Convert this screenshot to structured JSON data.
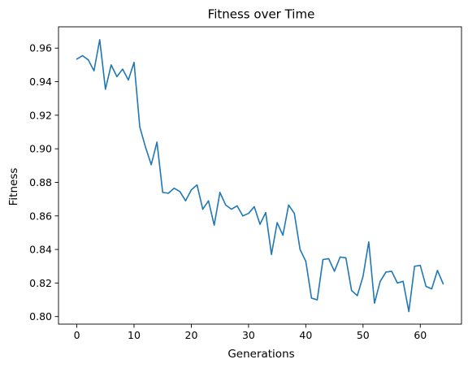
{
  "chart_data": {
    "type": "line",
    "title": "Fitness over Time",
    "xlabel": "Generations",
    "ylabel": "Fitness",
    "xlim": [
      -3.2,
      67.2
    ],
    "ylim": [
      0.7955,
      0.9727
    ],
    "xticks": [
      0,
      10,
      20,
      30,
      40,
      50,
      60
    ],
    "yticks": [
      0.8,
      0.82,
      0.84,
      0.86,
      0.88,
      0.9,
      0.92,
      0.94,
      0.96
    ],
    "ytick_labels": [
      "0.80",
      "0.82",
      "0.84",
      "0.86",
      "0.88",
      "0.90",
      "0.92",
      "0.94",
      "0.96"
    ],
    "grid": false,
    "line_color": "#1f77b4",
    "series": [
      {
        "x": [
          0,
          1,
          2,
          3,
          4,
          5,
          6,
          7,
          8,
          9,
          10,
          11,
          12,
          13,
          14,
          15,
          16,
          17,
          18,
          19,
          20,
          21,
          22,
          23,
          24,
          25,
          26,
          27,
          28,
          29,
          30,
          31,
          32,
          33,
          34,
          35,
          36,
          37,
          38,
          39,
          40,
          41,
          42,
          43,
          44,
          45,
          46,
          47,
          48,
          49,
          50,
          51,
          52,
          53,
          54,
          55,
          56,
          57,
          58,
          59,
          60,
          61,
          62,
          63,
          64
        ],
        "values": [
          0.9535,
          0.9555,
          0.953,
          0.9465,
          0.965,
          0.9355,
          0.95,
          0.943,
          0.9475,
          0.941,
          0.9515,
          0.913,
          0.901,
          0.8905,
          0.904,
          0.874,
          0.8735,
          0.8765,
          0.8745,
          0.869,
          0.8755,
          0.8785,
          0.864,
          0.869,
          0.8545,
          0.874,
          0.8665,
          0.864,
          0.866,
          0.86,
          0.8615,
          0.8655,
          0.855,
          0.862,
          0.837,
          0.856,
          0.8485,
          0.8665,
          0.8615,
          0.84,
          0.833,
          0.811,
          0.81,
          0.834,
          0.8345,
          0.827,
          0.8355,
          0.835,
          0.8155,
          0.8125,
          0.824,
          0.8445,
          0.808,
          0.821,
          0.8265,
          0.827,
          0.82,
          0.821,
          0.803,
          0.83,
          0.8305,
          0.818,
          0.8165,
          0.8275,
          0.8195
        ]
      }
    ]
  }
}
